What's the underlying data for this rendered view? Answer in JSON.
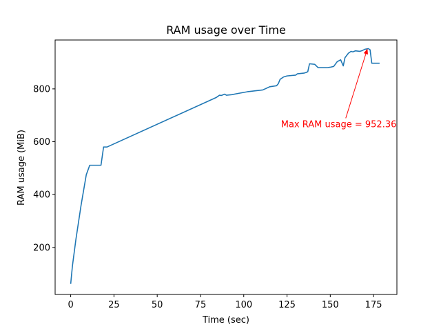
{
  "chart_data": {
    "type": "line",
    "title": "RAM usage over Time",
    "xlabel": "Time (sec)",
    "ylabel": "RAM usage (MiB)",
    "xlim": [
      -9,
      188.5
    ],
    "ylim": [
      22,
      985
    ],
    "xticks": [
      0,
      25,
      50,
      75,
      100,
      125,
      150,
      175
    ],
    "yticks": [
      200,
      400,
      600,
      800
    ],
    "grid": false,
    "series": [
      {
        "color": "#1f77b4",
        "points": [
          [
            0,
            62
          ],
          [
            1,
            130
          ],
          [
            3,
            230
          ],
          [
            6,
            360
          ],
          [
            9,
            475
          ],
          [
            11,
            511
          ],
          [
            17.5,
            511
          ],
          [
            19,
            580
          ],
          [
            21,
            580
          ],
          [
            84,
            767
          ],
          [
            86,
            776
          ],
          [
            87,
            775
          ],
          [
            89,
            780
          ],
          [
            90,
            776
          ],
          [
            93,
            778
          ],
          [
            97,
            783
          ],
          [
            102,
            789
          ],
          [
            107,
            793
          ],
          [
            111,
            796
          ],
          [
            115,
            808
          ],
          [
            119,
            812
          ],
          [
            120,
            820
          ],
          [
            121,
            836
          ],
          [
            123,
            845
          ],
          [
            125,
            849
          ],
          [
            130,
            852
          ],
          [
            131,
            857
          ],
          [
            135,
            860
          ],
          [
            136,
            862
          ],
          [
            137,
            865
          ],
          [
            138,
            895
          ],
          [
            141,
            893
          ],
          [
            143,
            880
          ],
          [
            148,
            880
          ],
          [
            150,
            882
          ],
          [
            152,
            885
          ],
          [
            154,
            903
          ],
          [
            156,
            910
          ],
          [
            157.5,
            887
          ],
          [
            158.5,
            918
          ],
          [
            160.5,
            935
          ],
          [
            162,
            942
          ],
          [
            163,
            940
          ],
          [
            164.5,
            944
          ],
          [
            167,
            942
          ],
          [
            168.5,
            945
          ],
          [
            170,
            950
          ],
          [
            172,
            952.36
          ],
          [
            173,
            948
          ],
          [
            174,
            897
          ],
          [
            178.5,
            897
          ]
        ]
      }
    ],
    "annotation": {
      "text": "Max RAM usage = 952.36",
      "color": "#ff0000",
      "arrow_to": [
        171.5,
        952.36
      ],
      "text_at": [
        121.5,
        655
      ]
    }
  }
}
